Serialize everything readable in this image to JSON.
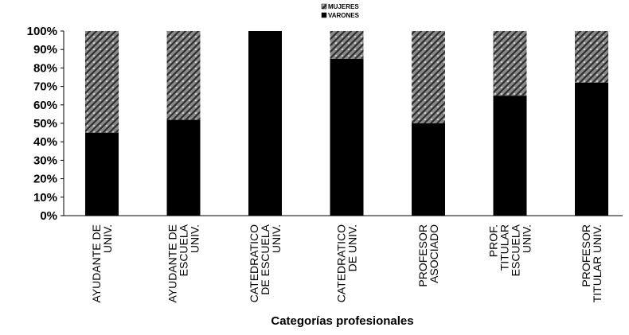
{
  "chart_data": {
    "type": "bar",
    "stacked": true,
    "percent": true,
    "xlabel": "Categorías profesionales",
    "ylabel": "",
    "ylim": [
      0,
      100
    ],
    "yticks": [
      "0%",
      "10%",
      "20%",
      "30%",
      "40%",
      "50%",
      "60%",
      "70%",
      "80%",
      "90%",
      "100%"
    ],
    "categories": [
      [
        "AYUDANTE DE",
        "UNIV."
      ],
      [
        "AYUDANTE DE",
        "ESCUELA",
        "UNIV."
      ],
      [
        "CATEDRATICO",
        "DE ESCUELA",
        "UNIV."
      ],
      [
        "CATEDRATICO",
        "DE UNIV."
      ],
      [
        "PROFESOR",
        "ASOCIADO"
      ],
      [
        "PROF.",
        "TITULAR",
        "ESCUELA",
        "UNIV."
      ],
      [
        "PROFESOR",
        "TITULAR UNIV."
      ]
    ],
    "series": [
      {
        "name": "VARONES",
        "color": "#000000",
        "values": [
          45,
          52,
          100,
          85,
          50,
          65,
          72
        ]
      },
      {
        "name": "MUJERES",
        "color": "#8c8c8c",
        "values": [
          55,
          48,
          0,
          15,
          50,
          35,
          28
        ]
      }
    ],
    "legend": {
      "position": "top",
      "order": [
        "MUJERES",
        "VARONES"
      ]
    },
    "grid": false
  }
}
